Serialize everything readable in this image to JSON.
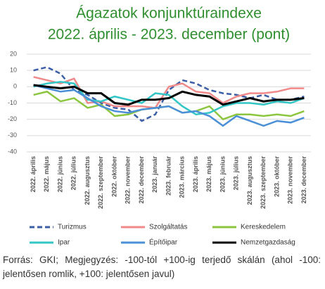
{
  "chart_data": {
    "type": "line",
    "title": "Ágazatok konjunktúraindexe",
    "subtitle": "2022. április - 2023. december (pont)",
    "categories": [
      "2022. április",
      "2022. május",
      "2022. június",
      "2022. július",
      "2022. augusztus",
      "2022. szeptember",
      "2022. október",
      "2022. november",
      "2022. december",
      "2023. január",
      "2023. február",
      "2023. március",
      "2023. április",
      "2023. május",
      "2023. június",
      "2023. július",
      "2023. augusztus",
      "2023. szeptember",
      "2023. október",
      "2023. november",
      "2023. december"
    ],
    "series": [
      {
        "name": "Turizmus",
        "color": "#3b5ea6",
        "dashed": true,
        "values": [
          10,
          12,
          8,
          -2,
          -5,
          -10,
          -13,
          -14,
          -21,
          -17,
          -2,
          4,
          2,
          -2,
          -4,
          -5,
          -7,
          -5,
          -8,
          -8,
          -6
        ]
      },
      {
        "name": "Szolgáltatás",
        "color": "#f08a8a",
        "values": [
          6,
          4,
          2,
          5,
          -10,
          -9,
          -12,
          -12,
          -12,
          -13,
          0,
          2,
          -3,
          -4,
          -10,
          -6,
          -4,
          -4,
          -3,
          -1,
          -1
        ]
      },
      {
        "name": "Kereskedelem",
        "color": "#8cc63f",
        "values": [
          -5,
          -3,
          -9,
          -7,
          -13,
          -11,
          -18,
          -17,
          -14,
          -13,
          -12,
          -16,
          -15,
          -12,
          -20,
          -17,
          -17,
          -18,
          -17,
          -18,
          -15
        ]
      },
      {
        "name": "Ipar",
        "color": "#33c6c6",
        "values": [
          0,
          2,
          3,
          2,
          -8,
          -9,
          -6,
          -8,
          -10,
          -4,
          -5,
          -12,
          -17,
          -16,
          -12,
          -10,
          -10,
          -11,
          -9,
          -10,
          -7
        ]
      },
      {
        "name": "Építőipar",
        "color": "#4a8fd8",
        "values": [
          1,
          -1,
          -3,
          -2,
          -7,
          -12,
          -15,
          -16,
          -14,
          -13,
          -12,
          -16,
          -15,
          -18,
          -24,
          -18,
          -21,
          -24,
          -21,
          -22,
          -19
        ]
      },
      {
        "name": "Nemzetgazdaság",
        "color": "#000000",
        "values": [
          1,
          0,
          -1,
          0,
          -4,
          -4,
          -10,
          -11,
          -8,
          -8,
          -7,
          -3,
          -5,
          -6,
          -11,
          -9,
          -7,
          -9,
          -8,
          -8,
          -7
        ]
      }
    ],
    "ylim": [
      -40,
      20
    ],
    "yticks": [
      -40,
      -30,
      -20,
      -10,
      0,
      10,
      20
    ],
    "grid": true,
    "note": "Forrás: GKI; Megjegyzés: -100-tól +100-ig terjedő skálán (ahol -100: jelentősen romlik, +100: jelentősen javul)"
  }
}
